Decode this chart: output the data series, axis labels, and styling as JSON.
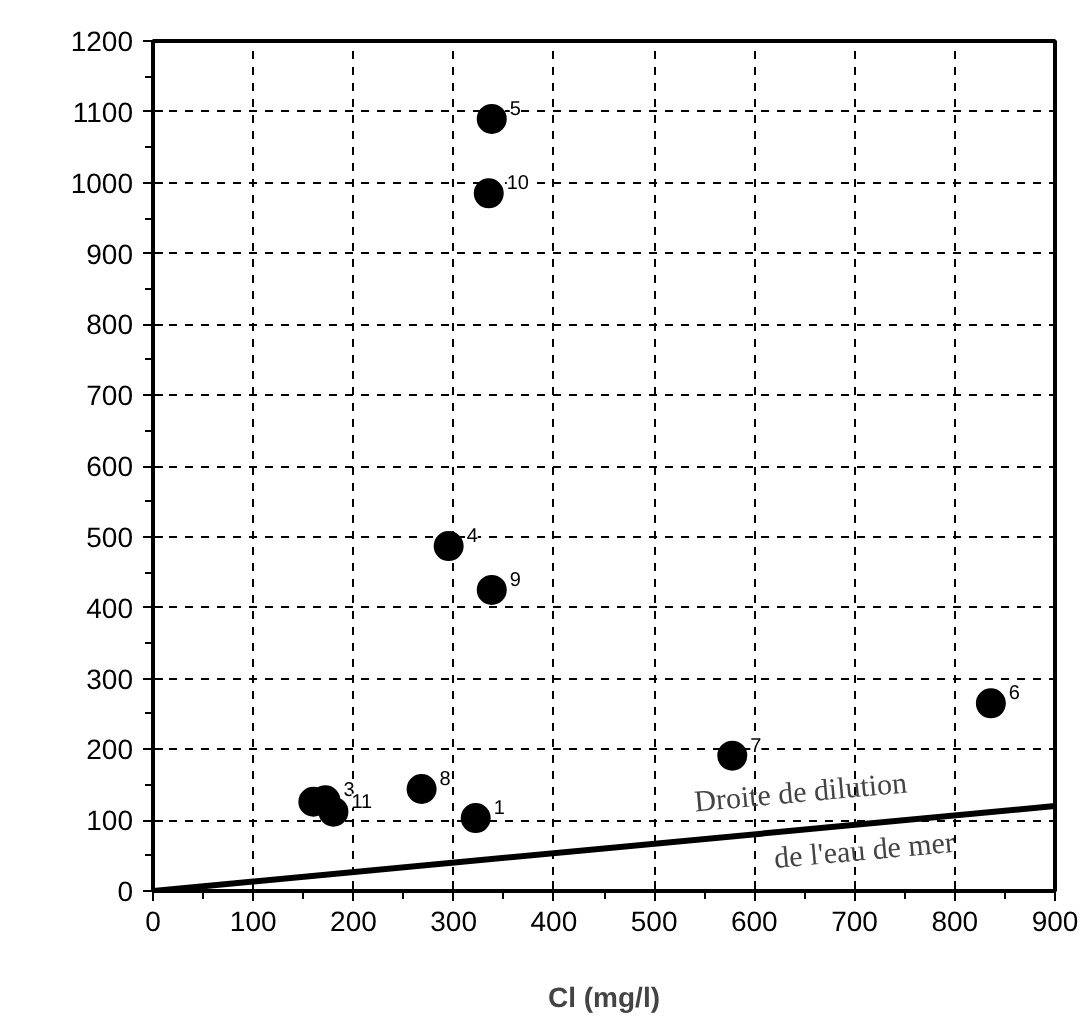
{
  "chart_data": {
    "type": "scatter",
    "xlabel": "Cl (mg/l)",
    "xlim": [
      0,
      900
    ],
    "ylim": [
      0,
      1200
    ],
    "xticks": [
      0,
      100,
      200,
      300,
      400,
      500,
      600,
      700,
      800,
      900
    ],
    "yticks": [
      0,
      100,
      200,
      300,
      400,
      500,
      600,
      700,
      800,
      900,
      1000,
      1100,
      1200
    ],
    "grid": true,
    "series": [
      {
        "color": "#000000",
        "marker": "circle",
        "x": [
          322,
          160,
          172,
          180,
          295,
          338,
          836,
          578,
          268,
          338,
          335
        ],
        "values": [
          103,
          126,
          128,
          112,
          487,
          1090,
          265,
          191,
          144,
          425,
          985
        ]
      },
      {
        "type": "line",
        "color": "#000000",
        "x": [
          0,
          900
        ],
        "values": [
          0,
          120
        ]
      }
    ],
    "annotations": [
      {
        "text": "1",
        "x": 322,
        "y": 103
      },
      {
        "text": "3",
        "x": 172,
        "y": 128
      },
      {
        "text": "11",
        "x": 180,
        "y": 112
      },
      {
        "text": "4",
        "x": 295,
        "y": 487
      },
      {
        "text": "5",
        "x": 338,
        "y": 1090
      },
      {
        "text": "6",
        "x": 836,
        "y": 265
      },
      {
        "text": "7",
        "x": 578,
        "y": 191
      },
      {
        "text": "8",
        "x": 268,
        "y": 144
      },
      {
        "text": "9",
        "x": 338,
        "y": 425
      },
      {
        "text": "10",
        "x": 335,
        "y": 985
      },
      "Droite  de dilution",
      "de l'eau de mer"
    ]
  }
}
